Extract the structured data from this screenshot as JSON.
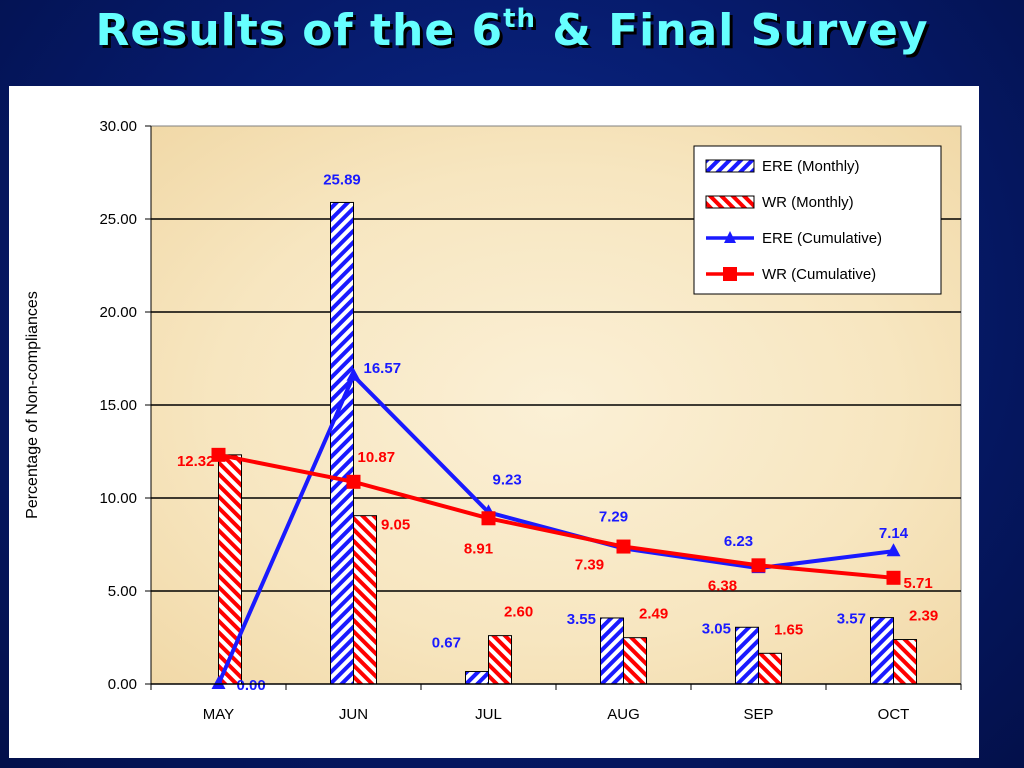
{
  "title": {
    "prefix": "Results of the 6",
    "superscript": "th",
    "suffix": " & Final Survey"
  },
  "chart_data": {
    "type": "bar",
    "categories": [
      "MAY",
      "JUN",
      "JUL",
      "AUG",
      "SEP",
      "OCT"
    ],
    "ylabel": "Percentage of Non-compliances",
    "ylim": [
      0,
      30
    ],
    "yticks": [
      "0.00",
      "5.00",
      "10.00",
      "15.00",
      "20.00",
      "25.00",
      "30.00"
    ],
    "grid": true,
    "legend_position": "top-right",
    "series": [
      {
        "name": "ERE (Monthly)",
        "kind": "bar",
        "pattern": "hatched",
        "color": "#1a1aff",
        "values": [
          0.0,
          25.89,
          0.67,
          3.55,
          3.05,
          3.57
        ],
        "labels": [
          "",
          "25.89",
          "0.67",
          "3.55",
          "3.05",
          "3.57"
        ]
      },
      {
        "name": "WR (Monthly)",
        "kind": "bar",
        "pattern": "hatched",
        "color": "#ff0000",
        "values": [
          12.32,
          9.05,
          2.6,
          2.49,
          1.65,
          2.39
        ],
        "labels": [
          "12.32",
          "9.05",
          "2.60",
          "2.49",
          "1.65",
          "2.39"
        ]
      },
      {
        "name": "ERE (Cumulative)",
        "kind": "line",
        "marker": "triangle",
        "color": "#1a1aff",
        "values": [
          0.0,
          16.57,
          9.23,
          7.29,
          6.23,
          7.14
        ],
        "labels": [
          "0.00",
          "16.57",
          "9.23",
          "7.29",
          "6.23",
          "7.14"
        ]
      },
      {
        "name": "WR (Cumulative)",
        "kind": "line",
        "marker": "square",
        "color": "#ff0000",
        "values": [
          12.32,
          10.87,
          8.91,
          7.39,
          6.38,
          5.71
        ],
        "labels": [
          "",
          "10.87",
          "8.91",
          "7.39",
          "6.38",
          "5.71"
        ]
      }
    ]
  }
}
